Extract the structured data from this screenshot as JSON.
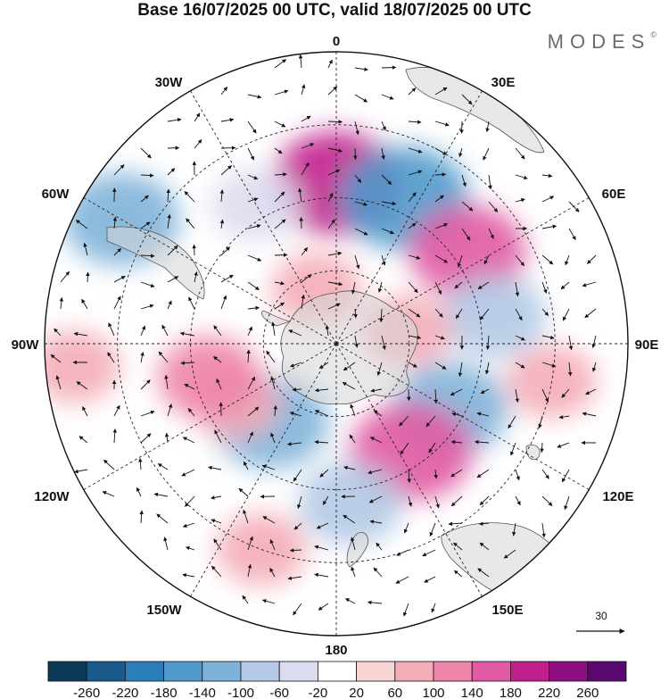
{
  "title": "Base 16/07/2025 00 UTC, valid 18/07/2025 00 UTC",
  "brand": "MODES",
  "brand_mark": "©",
  "longitude_labels": {
    "top": "0",
    "bottom": "180",
    "left": "90W",
    "right": "90E",
    "upper_left": "30W",
    "upper_right": "30E",
    "left_upper": "60W",
    "right_upper": "60E",
    "left_lower": "120W",
    "right_lower": "120E",
    "lower_left": "150W",
    "lower_right": "150E"
  },
  "vector_scale_label": "30",
  "colorbar": {
    "labels": [
      "-260",
      "-220",
      "-180",
      "-140",
      "-100",
      "-60",
      "-20",
      "20",
      "60",
      "100",
      "140",
      "180",
      "220",
      "260"
    ],
    "colors": [
      "#0d3a58",
      "#1a5a8a",
      "#2a7db8",
      "#4f9acb",
      "#7fb2d9",
      "#b3c9e6",
      "#dcdcf0",
      "#ffffff",
      "#f8d4d4",
      "#f4acb8",
      "#ee84aa",
      "#e15aa3",
      "#c21f8e",
      "#8e0f82",
      "#5a0a6e"
    ]
  },
  "field_blobs": [
    {
      "lon": 0,
      "lat_frac": 0.55,
      "value": 180
    },
    {
      "lon": 25,
      "lat_frac": 0.55,
      "value": -180
    },
    {
      "lon": 55,
      "lat_frac": 0.55,
      "value": 140
    },
    {
      "lon": 80,
      "lat_frac": 0.55,
      "value": -100
    },
    {
      "lon": 100,
      "lat_frac": 0.75,
      "value": 60
    },
    {
      "lon": 120,
      "lat_frac": 0.45,
      "value": -140
    },
    {
      "lon": 145,
      "lat_frac": 0.45,
      "value": 160
    },
    {
      "lon": 175,
      "lat_frac": 0.55,
      "value": -100
    },
    {
      "lon": -160,
      "lat_frac": 0.75,
      "value": 60
    },
    {
      "lon": -140,
      "lat_frac": 0.35,
      "value": -140
    },
    {
      "lon": -120,
      "lat_frac": 0.4,
      "value": 60
    },
    {
      "lon": -105,
      "lat_frac": 0.45,
      "value": 100
    },
    {
      "lon": -60,
      "lat_frac": 0.85,
      "value": -140
    },
    {
      "lon": -30,
      "lat_frac": 0.55,
      "value": -60
    },
    {
      "lon": -95,
      "lat_frac": 0.9,
      "value": 60
    },
    {
      "lon": 80,
      "lat_frac": 0.25,
      "value": 60
    },
    {
      "lon": -20,
      "lat_frac": 0.2,
      "value": 60
    }
  ]
}
